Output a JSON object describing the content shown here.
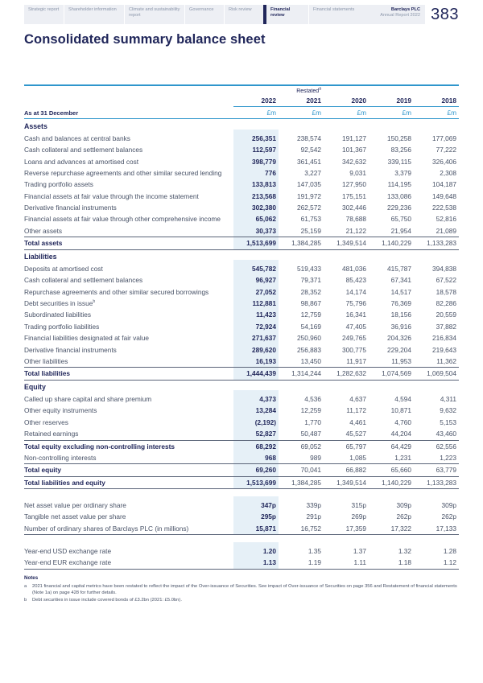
{
  "header": {
    "tabs": [
      {
        "label": "Strategic report",
        "active": false
      },
      {
        "label": "Shareholder information",
        "active": false
      },
      {
        "label": "Climate and sustainability report",
        "active": false
      },
      {
        "label": "Governance",
        "active": false
      },
      {
        "label": "Risk review",
        "active": false
      },
      {
        "label": "Financial review",
        "active": true
      },
      {
        "label": "Financial statements",
        "active": false
      }
    ],
    "brand_line1": "Barclays PLC",
    "brand_line2": "Annual Report 2022",
    "page_number": "383"
  },
  "page_title": "Consolidated summary balance sheet",
  "colors": {
    "navy": "#20265a",
    "body_text": "#475166",
    "accent_blue": "#2f96cc",
    "column_shade": "#e6f0f7",
    "band_bg": "#edeff4"
  },
  "table": {
    "row_header": "As at 31 December",
    "restated_label": "Restated",
    "restated_sup": "a",
    "years": [
      "2022",
      "2021",
      "2020",
      "2019",
      "2018"
    ],
    "unit": "£m",
    "rows": [
      {
        "type": "section",
        "label": "Assets"
      },
      {
        "type": "data",
        "label": "Cash and balances at central banks",
        "values": [
          "256,351",
          "238,574",
          "191,127",
          "150,258",
          "177,069"
        ]
      },
      {
        "type": "data",
        "label": "Cash collateral and settlement balances",
        "values": [
          "112,597",
          "92,542",
          "101,367",
          "83,256",
          "77,222"
        ]
      },
      {
        "type": "data",
        "label": "Loans and advances at amortised cost",
        "values": [
          "398,779",
          "361,451",
          "342,632",
          "339,115",
          "326,406"
        ]
      },
      {
        "type": "data",
        "label": "Reverse repurchase agreements and other similar secured lending",
        "values": [
          "776",
          "3,227",
          "9,031",
          "3,379",
          "2,308"
        ]
      },
      {
        "type": "data",
        "label": "Trading portfolio assets",
        "values": [
          "133,813",
          "147,035",
          "127,950",
          "114,195",
          "104,187"
        ]
      },
      {
        "type": "data",
        "label": "Financial assets at fair value through the income statement",
        "values": [
          "213,568",
          "191,972",
          "175,151",
          "133,086",
          "149,648"
        ]
      },
      {
        "type": "data",
        "label": "Derivative financial instruments",
        "values": [
          "302,380",
          "262,572",
          "302,446",
          "229,236",
          "222,538"
        ]
      },
      {
        "type": "data",
        "label": "Financial assets at fair value through other comprehensive income",
        "values": [
          "65,062",
          "61,753",
          "78,688",
          "65,750",
          "52,816"
        ]
      },
      {
        "type": "data",
        "label": "Other assets",
        "values": [
          "30,373",
          "25,159",
          "21,122",
          "21,954",
          "21,089"
        ]
      },
      {
        "type": "total",
        "label": "Total assets",
        "bt": true,
        "bb": true,
        "values": [
          "1,513,699",
          "1,384,285",
          "1,349,514",
          "1,140,229",
          "1,133,283"
        ]
      },
      {
        "type": "section",
        "label": "Liabilities"
      },
      {
        "type": "data",
        "label": "Deposits at amortised cost",
        "values": [
          "545,782",
          "519,433",
          "481,036",
          "415,787",
          "394,838"
        ]
      },
      {
        "type": "data",
        "label": "Cash collateral and settlement balances",
        "values": [
          "96,927",
          "79,371",
          "85,423",
          "67,341",
          "67,522"
        ]
      },
      {
        "type": "data",
        "label": "Repurchase agreements and other similar secured borrowings",
        "values": [
          "27,052",
          "28,352",
          "14,174",
          "14,517",
          "18,578"
        ]
      },
      {
        "type": "data",
        "label": "Debt securities in issue",
        "sup": "b",
        "values": [
          "112,881",
          "98,867",
          "75,796",
          "76,369",
          "82,286"
        ]
      },
      {
        "type": "data",
        "label": "Subordinated liabilities",
        "values": [
          "11,423",
          "12,759",
          "16,341",
          "18,156",
          "20,559"
        ]
      },
      {
        "type": "data",
        "label": "Trading portfolio liabilities",
        "values": [
          "72,924",
          "54,169",
          "47,405",
          "36,916",
          "37,882"
        ]
      },
      {
        "type": "data",
        "label": "Financial liabilities designated at fair value",
        "values": [
          "271,637",
          "250,960",
          "249,765",
          "204,326",
          "216,834"
        ]
      },
      {
        "type": "data",
        "label": "Derivative financial instruments",
        "values": [
          "289,620",
          "256,883",
          "300,775",
          "229,204",
          "219,643"
        ]
      },
      {
        "type": "data",
        "label": "Other liabilities",
        "values": [
          "16,193",
          "13,450",
          "11,917",
          "11,953",
          "11,362"
        ]
      },
      {
        "type": "total",
        "label": "Total liabilities",
        "bt": true,
        "bb": true,
        "values": [
          "1,444,439",
          "1,314,244",
          "1,282,632",
          "1,074,569",
          "1,069,504"
        ]
      },
      {
        "type": "section",
        "label": "Equity"
      },
      {
        "type": "data",
        "label": "Called up share capital and share premium",
        "values": [
          "4,373",
          "4,536",
          "4,637",
          "4,594",
          "4,311"
        ]
      },
      {
        "type": "data",
        "label": "Other equity instruments",
        "values": [
          "13,284",
          "12,259",
          "11,172",
          "10,871",
          "9,632"
        ]
      },
      {
        "type": "data",
        "label": "Other reserves",
        "values": [
          "(2,192)",
          "1,770",
          "4,461",
          "4,760",
          "5,153"
        ]
      },
      {
        "type": "data",
        "label": "Retained earnings",
        "values": [
          "52,827",
          "50,487",
          "45,527",
          "44,204",
          "43,460"
        ]
      },
      {
        "type": "total",
        "label": "Total equity excluding non-controlling interests",
        "bt": true,
        "values": [
          "68,292",
          "69,052",
          "65,797",
          "64,429",
          "62,556"
        ]
      },
      {
        "type": "data",
        "label": "Non-controlling interests",
        "values": [
          "968",
          "989",
          "1,085",
          "1,231",
          "1,223"
        ]
      },
      {
        "type": "total",
        "label": "Total equity",
        "bt": true,
        "bb": true,
        "values": [
          "69,260",
          "70,041",
          "66,882",
          "65,660",
          "63,779"
        ]
      },
      {
        "type": "total",
        "label": "Total liabilities and equity",
        "bb": true,
        "values": [
          "1,513,699",
          "1,384,285",
          "1,349,514",
          "1,140,229",
          "1,133,283"
        ]
      },
      {
        "type": "spacer"
      },
      {
        "type": "data",
        "label": "Net asset value per ordinary share",
        "values": [
          "347p",
          "339p",
          "315p",
          "309p",
          "309p"
        ]
      },
      {
        "type": "data",
        "label": "Tangible net asset value per share",
        "values": [
          "295p",
          "291p",
          "269p",
          "262p",
          "262p"
        ]
      },
      {
        "type": "data",
        "label": "Number of ordinary shares of Barclays PLC (in millions)",
        "bb": true,
        "values": [
          "15,871",
          "16,752",
          "17,359",
          "17,322",
          "17,133"
        ]
      },
      {
        "type": "spacer"
      },
      {
        "type": "data",
        "label": "Year-end USD exchange rate",
        "values": [
          "1.20",
          "1.35",
          "1.37",
          "1.32",
          "1.28"
        ]
      },
      {
        "type": "data",
        "label": "Year-end EUR exchange rate",
        "bb": true,
        "values": [
          "1.13",
          "1.19",
          "1.11",
          "1.18",
          "1.12"
        ]
      }
    ]
  },
  "notes": {
    "title": "Notes",
    "items": [
      {
        "marker": "a",
        "text": "2021 financial and capital metrics have been restated to reflect the impact of the Over-issuance of Securities. See impact of Over-issuance of Securities on page 356 and Restatement of financial statements (Note 1a) on page 428 for further details."
      },
      {
        "marker": "b",
        "text": "Debt securities in issue include covered bonds of £3.2bn (2021: £5.0bn)."
      }
    ]
  }
}
